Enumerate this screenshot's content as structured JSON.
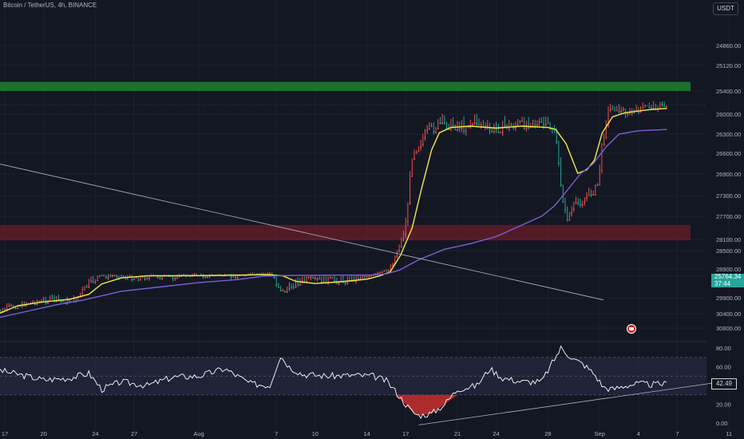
{
  "header": {
    "symbol_title": "Bitcoin / TetherUS, 4h, BINANCE",
    "currency": "USDT"
  },
  "price_scale": {
    "last_price": "25764.34",
    "countdown": "37:44"
  },
  "rsi_scale": {
    "last_value": "42.49"
  },
  "colors": {
    "background": "#131722",
    "up_candle": "#26a69a",
    "up_candle_bright": "#4caf50",
    "down_candle": "#ef5350",
    "ma_fast": "#f5e94a",
    "ma_slow": "#7b5fd6",
    "resistance_zone": "#6b1e2a",
    "support_zone": "#1e7a2e",
    "rsi_line": "#ffffff",
    "rsi_band": "#2a2d4a"
  },
  "chart_data": [
    {
      "type": "candlestick",
      "xlabel": "",
      "ylabel": "",
      "y_ticks": [
        30800,
        30400,
        29900,
        29400,
        28900,
        28500,
        28100,
        27700,
        27300,
        26900,
        26600,
        26300,
        26000,
        25400,
        25120,
        24860
      ],
      "y_tick_labels": [
        "30800.00",
        "30400.00",
        "29900.00",
        "29400.00",
        "28900.00",
        "28500.00",
        "28100.00",
        "27700.00",
        "27300.00",
        "26900.00",
        "26600.00",
        "26300.00",
        "26000.00",
        "25400.00",
        "25120.00",
        "24860.00"
      ],
      "x_tick_labels": [
        "17",
        "20",
        "24",
        "27",
        "Aug",
        "7",
        "10",
        "14",
        "17",
        "21",
        "24",
        "28",
        "Sep",
        "4",
        "7",
        "11"
      ],
      "x_ticks_day": [
        0,
        3,
        7,
        10,
        15,
        21,
        24,
        28,
        31,
        35,
        38,
        42,
        46,
        49,
        52,
        56
      ],
      "x_range_day": [
        0,
        56
      ],
      "ylim": [
        24860,
        30800
      ],
      "price_close_path": [
        [
          -1,
          30380
        ],
        [
          0.5,
          30180
        ],
        [
          1.5,
          30080
        ],
        [
          2.5,
          30020
        ],
        [
          3.5,
          29950
        ],
        [
          4.5,
          30020
        ],
        [
          5.5,
          29940
        ],
        [
          6.5,
          29560
        ],
        [
          7.5,
          29360
        ],
        [
          8.5,
          29350
        ],
        [
          9.5,
          29390
        ],
        [
          10.5,
          29410
        ],
        [
          11.5,
          29360
        ],
        [
          12.5,
          29420
        ],
        [
          13.5,
          29350
        ],
        [
          14.5,
          29290
        ],
        [
          15.5,
          29360
        ],
        [
          16.5,
          29320
        ],
        [
          17.5,
          29380
        ],
        [
          18.5,
          29270
        ],
        [
          19.5,
          29280
        ],
        [
          20.5,
          29180
        ],
        [
          21,
          29550
        ],
        [
          21.5,
          29760
        ],
        [
          22.5,
          29540
        ],
        [
          23.5,
          29480
        ],
        [
          24.5,
          29470
        ],
        [
          25.5,
          29490
        ],
        [
          26.5,
          29470
        ],
        [
          27.5,
          29400
        ],
        [
          28.5,
          29290
        ],
        [
          29.5,
          29000
        ],
        [
          30.2,
          28600
        ],
        [
          31,
          27800
        ],
        [
          31.5,
          26600
        ],
        [
          32.5,
          26300
        ],
        [
          33.5,
          26150
        ],
        [
          34.5,
          26150
        ],
        [
          35.5,
          26180
        ],
        [
          36.5,
          26100
        ],
        [
          37.5,
          26250
        ],
        [
          38.5,
          26180
        ],
        [
          39.5,
          26150
        ],
        [
          40.5,
          26120
        ],
        [
          41.5,
          26140
        ],
        [
          42.5,
          26200
        ],
        [
          43.4,
          27750
        ],
        [
          44,
          27500
        ],
        [
          45,
          27300
        ],
        [
          45.8,
          27150
        ],
        [
          46.3,
          26300
        ],
        [
          46.8,
          25780
        ],
        [
          47.5,
          25880
        ],
        [
          48.5,
          25950
        ],
        [
          49.5,
          25800
        ],
        [
          50.5,
          25790
        ],
        [
          51.2,
          25764
        ]
      ],
      "zones": [
        {
          "name": "resistance",
          "from": 27850,
          "to": 28130,
          "x_start": -1,
          "x_end": 56
        },
        {
          "name": "support",
          "from": 25300,
          "to": 25400,
          "x_start": -1,
          "x_end": 56
        }
      ],
      "series": [
        {
          "kind": "moving_average_fast",
          "points": [
            [
              -1,
              30480
            ],
            [
              1,
              30150
            ],
            [
              3,
              30030
            ],
            [
              5,
              29950
            ],
            [
              6.5,
              29820
            ],
            [
              7.5,
              29580
            ],
            [
              9,
              29440
            ],
            [
              11,
              29380
            ],
            [
              13,
              29370
            ],
            [
              15,
              29360
            ],
            [
              17,
              29340
            ],
            [
              19,
              29310
            ],
            [
              20.5,
              29300
            ],
            [
              21.5,
              29380
            ],
            [
              22.5,
              29520
            ],
            [
              24,
              29570
            ],
            [
              26,
              29530
            ],
            [
              28,
              29470
            ],
            [
              29,
              29380
            ],
            [
              29.8,
              29100
            ],
            [
              30.6,
              28600
            ],
            [
              31.5,
              27900
            ],
            [
              32.2,
              27200
            ],
            [
              33,
              26550
            ],
            [
              33.6,
              26280
            ],
            [
              34.5,
              26200
            ],
            [
              36,
              26180
            ],
            [
              38,
              26210
            ],
            [
              40,
              26180
            ],
            [
              42,
              26200
            ],
            [
              42.6,
              26230
            ],
            [
              43.4,
              26450
            ],
            [
              44.3,
              26890
            ],
            [
              45,
              26840
            ],
            [
              45.6,
              26700
            ],
            [
              46.2,
              26280
            ],
            [
              47,
              26040
            ],
            [
              48,
              25960
            ],
            [
              49,
              25920
            ],
            [
              50,
              25880
            ],
            [
              51.2,
              25850
            ]
          ]
        },
        {
          "kind": "moving_average_slow",
          "points": [
            [
              -1,
              30550
            ],
            [
              2,
              30300
            ],
            [
              4,
              30120
            ],
            [
              6,
              29980
            ],
            [
              9,
              29750
            ],
            [
              12,
              29650
            ],
            [
              15,
              29550
            ],
            [
              18,
              29480
            ],
            [
              20,
              29400
            ],
            [
              22,
              29350
            ],
            [
              25,
              29330
            ],
            [
              27,
              29320
            ],
            [
              28.5,
              29320
            ],
            [
              29.5,
              29240
            ],
            [
              30.5,
              28990
            ],
            [
              32,
              28700
            ],
            [
              34,
              28450
            ],
            [
              36,
              28250
            ],
            [
              38,
              28050
            ],
            [
              40,
              27850
            ],
            [
              41.5,
              27700
            ],
            [
              42.5,
              27500
            ],
            [
              43.5,
              27200
            ],
            [
              44.5,
              26900
            ],
            [
              45.5,
              26750
            ],
            [
              46.5,
              26500
            ],
            [
              47.5,
              26300
            ],
            [
              49,
              26250
            ],
            [
              51.2,
              26230
            ]
          ]
        },
        {
          "kind": "trendline",
          "points": [
            [
              -1,
              26730
            ],
            [
              46.3,
              29970
            ]
          ]
        }
      ]
    },
    {
      "type": "line",
      "name": "RSI",
      "ylim": [
        0,
        90
      ],
      "y_ticks": [
        80,
        60,
        40,
        20,
        0
      ],
      "y_tick_labels": [
        "80.00",
        "60.00",
        "40.00",
        "20.00",
        "0.00"
      ],
      "band": [
        30,
        70
      ],
      "points": [
        [
          -1,
          58
        ],
        [
          1,
          52
        ],
        [
          3,
          46
        ],
        [
          5,
          48
        ],
        [
          6.5,
          53
        ],
        [
          7.5,
          36
        ],
        [
          9,
          44
        ],
        [
          11,
          40
        ],
        [
          13,
          49
        ],
        [
          15,
          50
        ],
        [
          17,
          58
        ],
        [
          19,
          42
        ],
        [
          20.5,
          40
        ],
        [
          21.3,
          72
        ],
        [
          22,
          60
        ],
        [
          23,
          52
        ],
        [
          25,
          50
        ],
        [
          27,
          51
        ],
        [
          28.5,
          50
        ],
        [
          29.5,
          45
        ],
        [
          30.2,
          34
        ],
        [
          31,
          20
        ],
        [
          31.5,
          12
        ],
        [
          32,
          8
        ],
        [
          33,
          10
        ],
        [
          34,
          20
        ],
        [
          35,
          36
        ],
        [
          36.5,
          40
        ],
        [
          37.5,
          58
        ],
        [
          38.5,
          48
        ],
        [
          40,
          44
        ],
        [
          41.5,
          44
        ],
        [
          43,
          80
        ],
        [
          44,
          68
        ],
        [
          44.8,
          62
        ],
        [
          45.6,
          52
        ],
        [
          46.3,
          38
        ],
        [
          47,
          36
        ],
        [
          48,
          40
        ],
        [
          49,
          42
        ],
        [
          50,
          41
        ],
        [
          51.2,
          42
        ]
      ],
      "trendline": [
        [
          32,
          -2
        ],
        [
          56,
          45
        ]
      ]
    }
  ]
}
